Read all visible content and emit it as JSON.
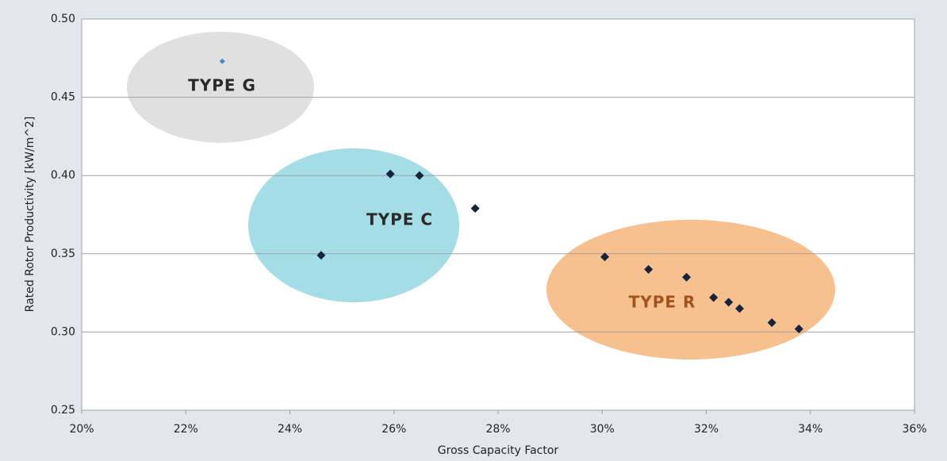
{
  "chart_data": {
    "type": "scatter",
    "xlabel": "Gross Capacity Factor",
    "ylabel": "Rated Rotor Productivity [kW/m^2]",
    "x": [
      22.7,
      25.93,
      26.49,
      27.56,
      24.6,
      30.05,
      30.89,
      31.62,
      32.14,
      32.43,
      32.64,
      33.26,
      33.78
    ],
    "values": [
      0.473,
      0.401,
      0.4,
      0.379,
      0.349,
      0.348,
      0.34,
      0.335,
      0.322,
      0.319,
      0.315,
      0.306,
      0.302
    ],
    "colors": [
      "#4a86c8",
      "#16233f",
      "#16233f",
      "#16233f",
      "#16233f",
      "#16233f",
      "#16233f",
      "#16233f",
      "#16233f",
      "#16233f",
      "#16233f",
      "#16233f",
      "#16233f"
    ],
    "annotations": [
      {
        "text": "TYPE G",
        "color": "#2a2a2a",
        "fill": "#e0e0e0"
      },
      {
        "text": "TYPE C",
        "color": "#2a2a2a",
        "fill": "#a4dde6"
      },
      {
        "text": "TYPE R",
        "color": "#a0541c",
        "fill": "#f7c08f"
      }
    ],
    "xlim": [
      20,
      36
    ],
    "xticks": [
      {
        "value": 20,
        "label": "20%"
      },
      {
        "value": 22,
        "label": "22%"
      },
      {
        "value": 24,
        "label": "24%"
      },
      {
        "value": 26,
        "label": "26%"
      },
      {
        "value": 28,
        "label": "28%"
      },
      {
        "value": 30,
        "label": "30%"
      },
      {
        "value": 32,
        "label": "32%"
      },
      {
        "value": 34,
        "label": "34%"
      },
      {
        "value": 36,
        "label": "36%"
      }
    ],
    "ylim": [
      0.25,
      0.5
    ],
    "yticks": [
      0.25,
      {
        "value": 0.3,
        "label": "0.30"
      },
      0.35,
      {
        "value": 0.4,
        "label": "0.40"
      },
      0.45,
      {
        "value": 0.5,
        "label": "0.50"
      }
    ],
    "grid": true
  }
}
